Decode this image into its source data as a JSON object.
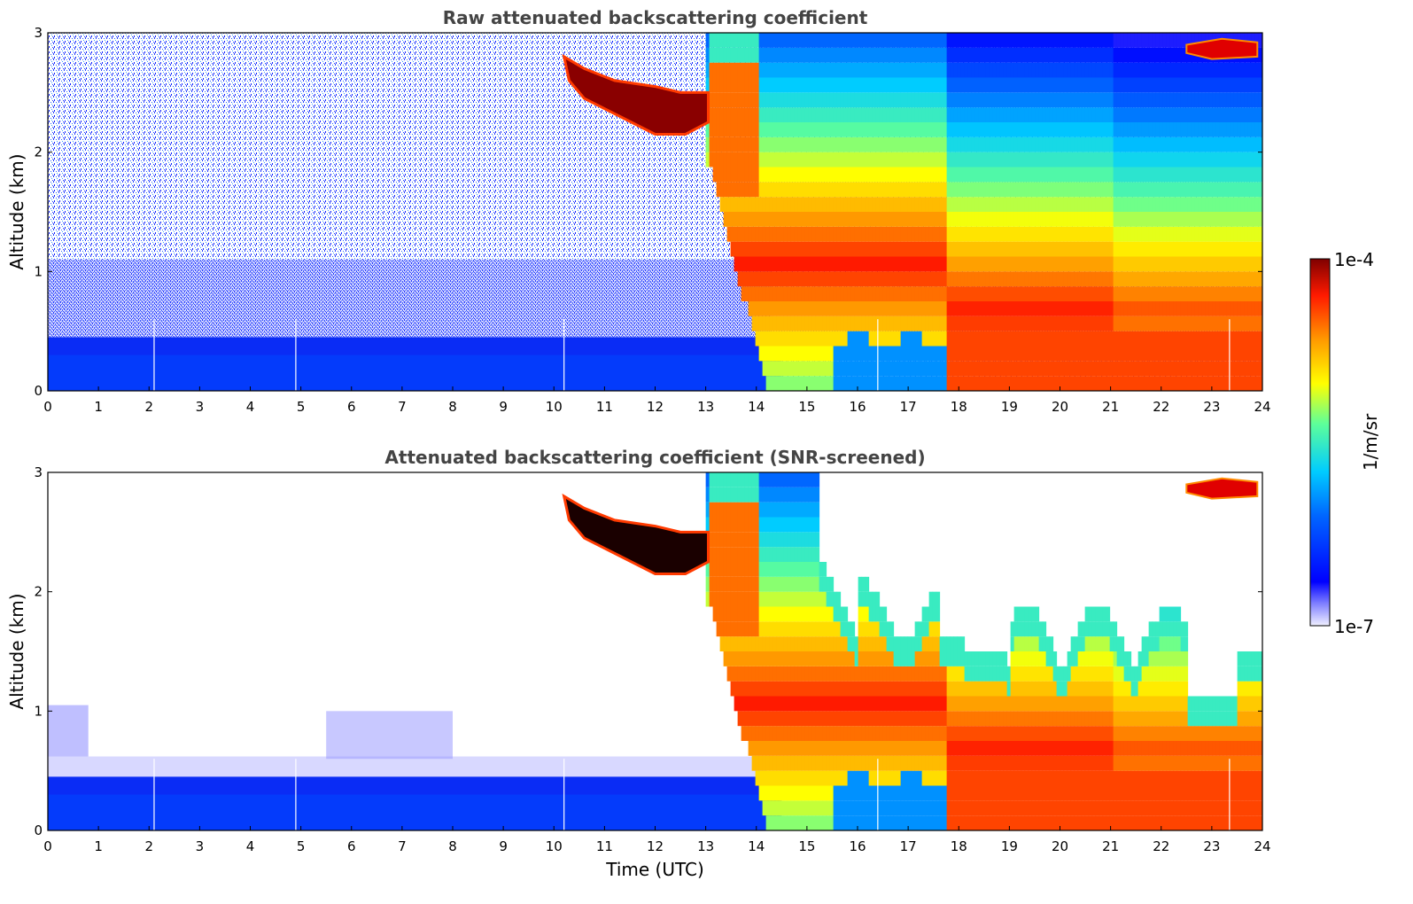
{
  "chart_data": [
    {
      "type": "heatmap",
      "title": "Raw attenuated backscattering coefficient",
      "xlabel": "",
      "ylabel": "Altitude (km)",
      "xlim": [
        0,
        24
      ],
      "ylim": [
        0,
        3
      ],
      "xticks": [
        "0",
        "1",
        "2",
        "3",
        "4",
        "5",
        "6",
        "7",
        "8",
        "9",
        "10",
        "11",
        "12",
        "13",
        "14",
        "15",
        "16",
        "17",
        "18",
        "19",
        "20",
        "21",
        "22",
        "23",
        "24"
      ],
      "yticks": [
        "0",
        "1",
        "2",
        "3"
      ],
      "screened": false
    },
    {
      "type": "heatmap",
      "title": "Attenuated backscattering coefficient (SNR-screened)",
      "xlabel": "Time (UTC)",
      "ylabel": "Altitude (km)",
      "xlim": [
        0,
        24
      ],
      "ylim": [
        0,
        3
      ],
      "xticks": [
        "0",
        "1",
        "2",
        "3",
        "4",
        "5",
        "6",
        "7",
        "8",
        "9",
        "10",
        "11",
        "12",
        "13",
        "14",
        "15",
        "16",
        "17",
        "18",
        "19",
        "20",
        "21",
        "22",
        "23",
        "24"
      ],
      "yticks": [
        "0",
        "1",
        "2",
        "3"
      ],
      "screened": true
    }
  ],
  "colorbar": {
    "label": "1/m/sr",
    "max_label": "1e-4",
    "min_label": "1e-7",
    "scale": "log",
    "range": [
      1e-07,
      0.0001
    ]
  }
}
